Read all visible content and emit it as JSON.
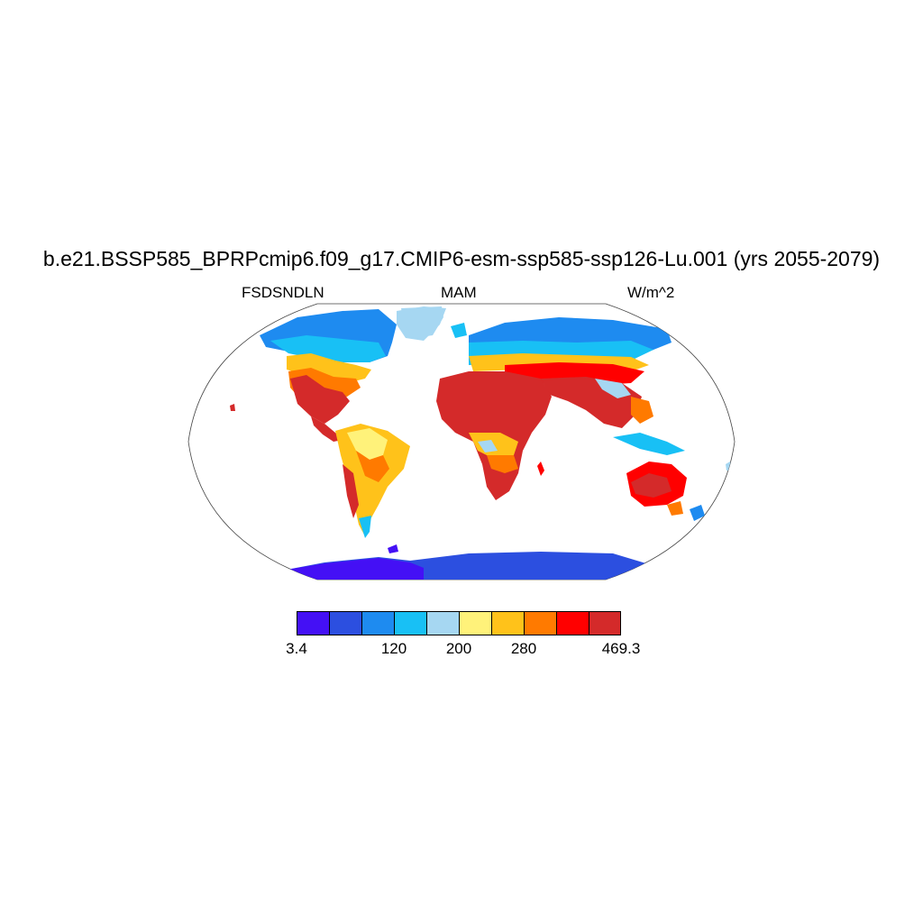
{
  "title": "b.e21.BSSP585_BPRPcmip6.f09_g17.CMIP6-esm-ssp585-ssp126-Lu.001 (yrs 2055-2079)",
  "left_label": "FSDSNDLN",
  "center_label": "MAM",
  "right_label": "W/m^2",
  "map": {
    "projection": "Robinson",
    "variable": "FSDSNDLN",
    "season": "MAM",
    "units": "W/m^2"
  },
  "colorbar": {
    "colors": [
      "#4410F5",
      "#2C4FE0",
      "#1E8BF0",
      "#18C0F5",
      "#A6D7F2",
      "#FFF27A",
      "#FFC21A",
      "#FF7A00",
      "#FF0000",
      "#D42A2A"
    ],
    "labels": [
      {
        "text": "3.4",
        "boundary": 0
      },
      {
        "text": "120",
        "boundary": 3
      },
      {
        "text": "200",
        "boundary": 5
      },
      {
        "text": "280",
        "boundary": 7
      },
      {
        "text": "469.3",
        "boundary": 10
      }
    ]
  }
}
